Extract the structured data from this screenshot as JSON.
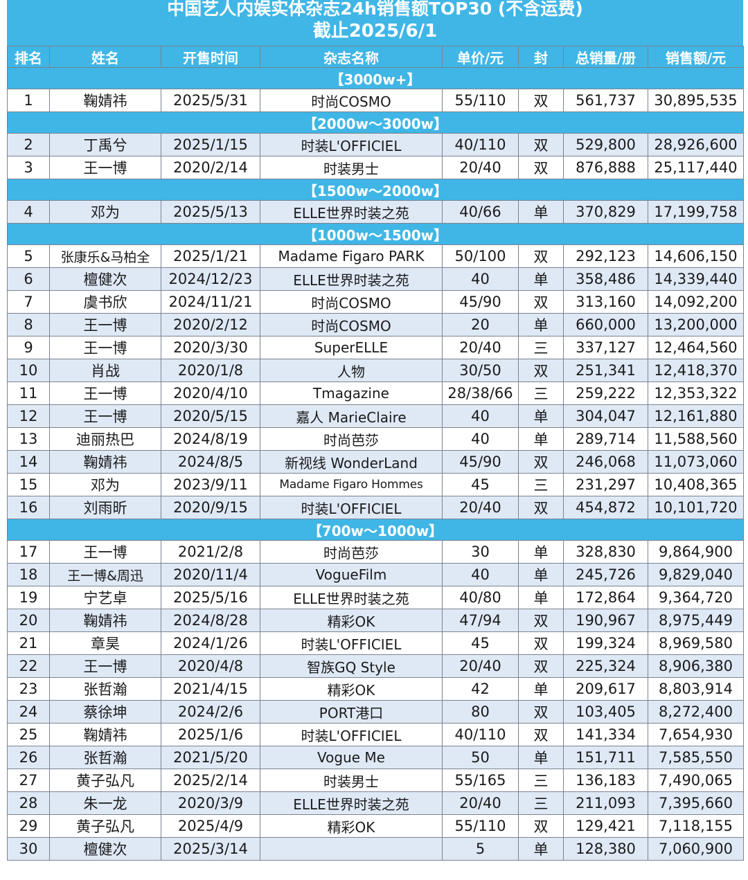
{
  "title": {
    "line1": "中国艺人内娱实体杂志24h销售额TOP30 (不含运费)",
    "line2": "截止2025/6/1"
  },
  "columns": [
    "排名",
    "姓名",
    "开售时间",
    "杂志名称",
    "单价/元",
    "封",
    "总销量/册",
    "销售额/元"
  ],
  "colors": {
    "header_bg": "#3fb6e6",
    "alt_row_bg": "#dfe9f6",
    "text": "#1a1a1a"
  },
  "groups": [
    {
      "tier": "【3000w+】",
      "rows": [
        [
          "1",
          "鞠婧祎",
          "2025/5/31",
          "时尚COSMO",
          "55/110",
          "双",
          "561,737",
          "30,895,535"
        ]
      ]
    },
    {
      "tier": "【2000w～3000w】",
      "rows": [
        [
          "2",
          "丁禹兮",
          "2025/1/15",
          "时装L'OFFICIEL",
          "40/110",
          "双",
          "529,800",
          "28,926,600"
        ],
        [
          "3",
          "王一博",
          "2020/2/14",
          "时装男士",
          "20/40",
          "双",
          "876,888",
          "25,117,440"
        ]
      ]
    },
    {
      "tier": "【1500w～2000w】",
      "rows": [
        [
          "4",
          "邓为",
          "2025/5/13",
          "ELLE世界时装之苑",
          "40/66",
          "单",
          "370,829",
          "17,199,758"
        ]
      ]
    },
    {
      "tier": "【1000w～1500w】",
      "rows": [
        [
          "5",
          "张康乐&马柏全",
          "2025/1/21",
          "Madame Figaro PARK",
          "50/100",
          "双",
          "292,123",
          "14,606,150"
        ],
        [
          "6",
          "檀健次",
          "2024/12/23",
          "ELLE世界时装之苑",
          "40",
          "单",
          "358,486",
          "14,339,440"
        ],
        [
          "7",
          "虞书欣",
          "2024/11/21",
          "时尚COSMO",
          "45/90",
          "双",
          "313,160",
          "14,092,200"
        ],
        [
          "8",
          "王一博",
          "2020/2/12",
          "时尚COSMO",
          "20",
          "单",
          "660,000",
          "13,200,000"
        ],
        [
          "9",
          "王一博",
          "2020/3/30",
          "SuperELLE",
          "20/40",
          "三",
          "337,127",
          "12,464,560"
        ],
        [
          "10",
          "肖战",
          "2020/1/8",
          "人物",
          "30/50",
          "双",
          "251,341",
          "12,418,370"
        ],
        [
          "11",
          "王一博",
          "2020/4/10",
          "Tmagazine",
          "28/38/66",
          "三",
          "259,222",
          "12,353,322"
        ],
        [
          "12",
          "王一博",
          "2020/5/15",
          "嘉人 MarieClaire",
          "40",
          "单",
          "304,047",
          "12,161,880"
        ],
        [
          "13",
          "迪丽热巴",
          "2024/8/19",
          "时尚芭莎",
          "40",
          "单",
          "289,714",
          "11,588,560"
        ],
        [
          "14",
          "鞠婧祎",
          "2024/8/5",
          "新视线 WonderLand",
          "45/90",
          "双",
          "246,068",
          "11,073,060"
        ],
        [
          "15",
          "邓为",
          "2023/9/11",
          "Madame Figaro Hommes",
          "45",
          "三",
          "231,297",
          "10,408,365"
        ],
        [
          "16",
          "刘雨昕",
          "2020/9/15",
          "时装L'OFFICIEL",
          "20/40",
          "双",
          "454,872",
          "10,101,720"
        ]
      ]
    },
    {
      "tier": "【700w～1000w】",
      "rows": [
        [
          "17",
          "王一博",
          "2021/2/8",
          "时尚芭莎",
          "30",
          "单",
          "328,830",
          "9,864,900"
        ],
        [
          "18",
          "王一博&周迅",
          "2020/11/4",
          "VogueFilm",
          "40",
          "单",
          "245,726",
          "9,829,040"
        ],
        [
          "19",
          "宁艺卓",
          "2025/5/16",
          "ELLE世界时装之苑",
          "40/80",
          "单",
          "172,864",
          "9,364,720"
        ],
        [
          "20",
          "鞠婧祎",
          "2024/8/28",
          "精彩OK",
          "47/94",
          "双",
          "190,967",
          "8,975,449"
        ],
        [
          "21",
          "章昊",
          "2024/1/26",
          "时装L'OFFICIEL",
          "45",
          "双",
          "199,324",
          "8,969,580"
        ],
        [
          "22",
          "王一博",
          "2020/4/8",
          "智族GQ Style",
          "20/40",
          "双",
          "225,324",
          "8,906,380"
        ],
        [
          "23",
          "张哲瀚",
          "2021/4/15",
          "精彩OK",
          "42",
          "单",
          "209,617",
          "8,803,914"
        ],
        [
          "24",
          "蔡徐坤",
          "2024/2/6",
          "PORT港口",
          "80",
          "双",
          "103,405",
          "8,272,400"
        ],
        [
          "25",
          "鞠婧祎",
          "2025/1/6",
          "时装L'OFFICIEL",
          "40/110",
          "双",
          "141,334",
          "7,654,930"
        ],
        [
          "26",
          "张哲瀚",
          "2021/5/20",
          "Vogue Me",
          "50",
          "单",
          "151,711",
          "7,585,550"
        ],
        [
          "27",
          "黄子弘凡",
          "2025/2/14",
          "时装男士",
          "55/165",
          "三",
          "136,183",
          "7,490,065"
        ],
        [
          "28",
          "朱一龙",
          "2020/3/9",
          "ELLE世界时装之苑",
          "20/40",
          "三",
          "211,093",
          "7,395,660"
        ],
        [
          "29",
          "黄子弘凡",
          "2025/4/9",
          "精彩OK",
          "55/110",
          "双",
          "129,421",
          "7,118,155"
        ],
        [
          "30",
          "檀健次",
          "2025/3/14",
          "",
          "5",
          "单",
          "128,380",
          "7,060,900"
        ]
      ]
    }
  ]
}
